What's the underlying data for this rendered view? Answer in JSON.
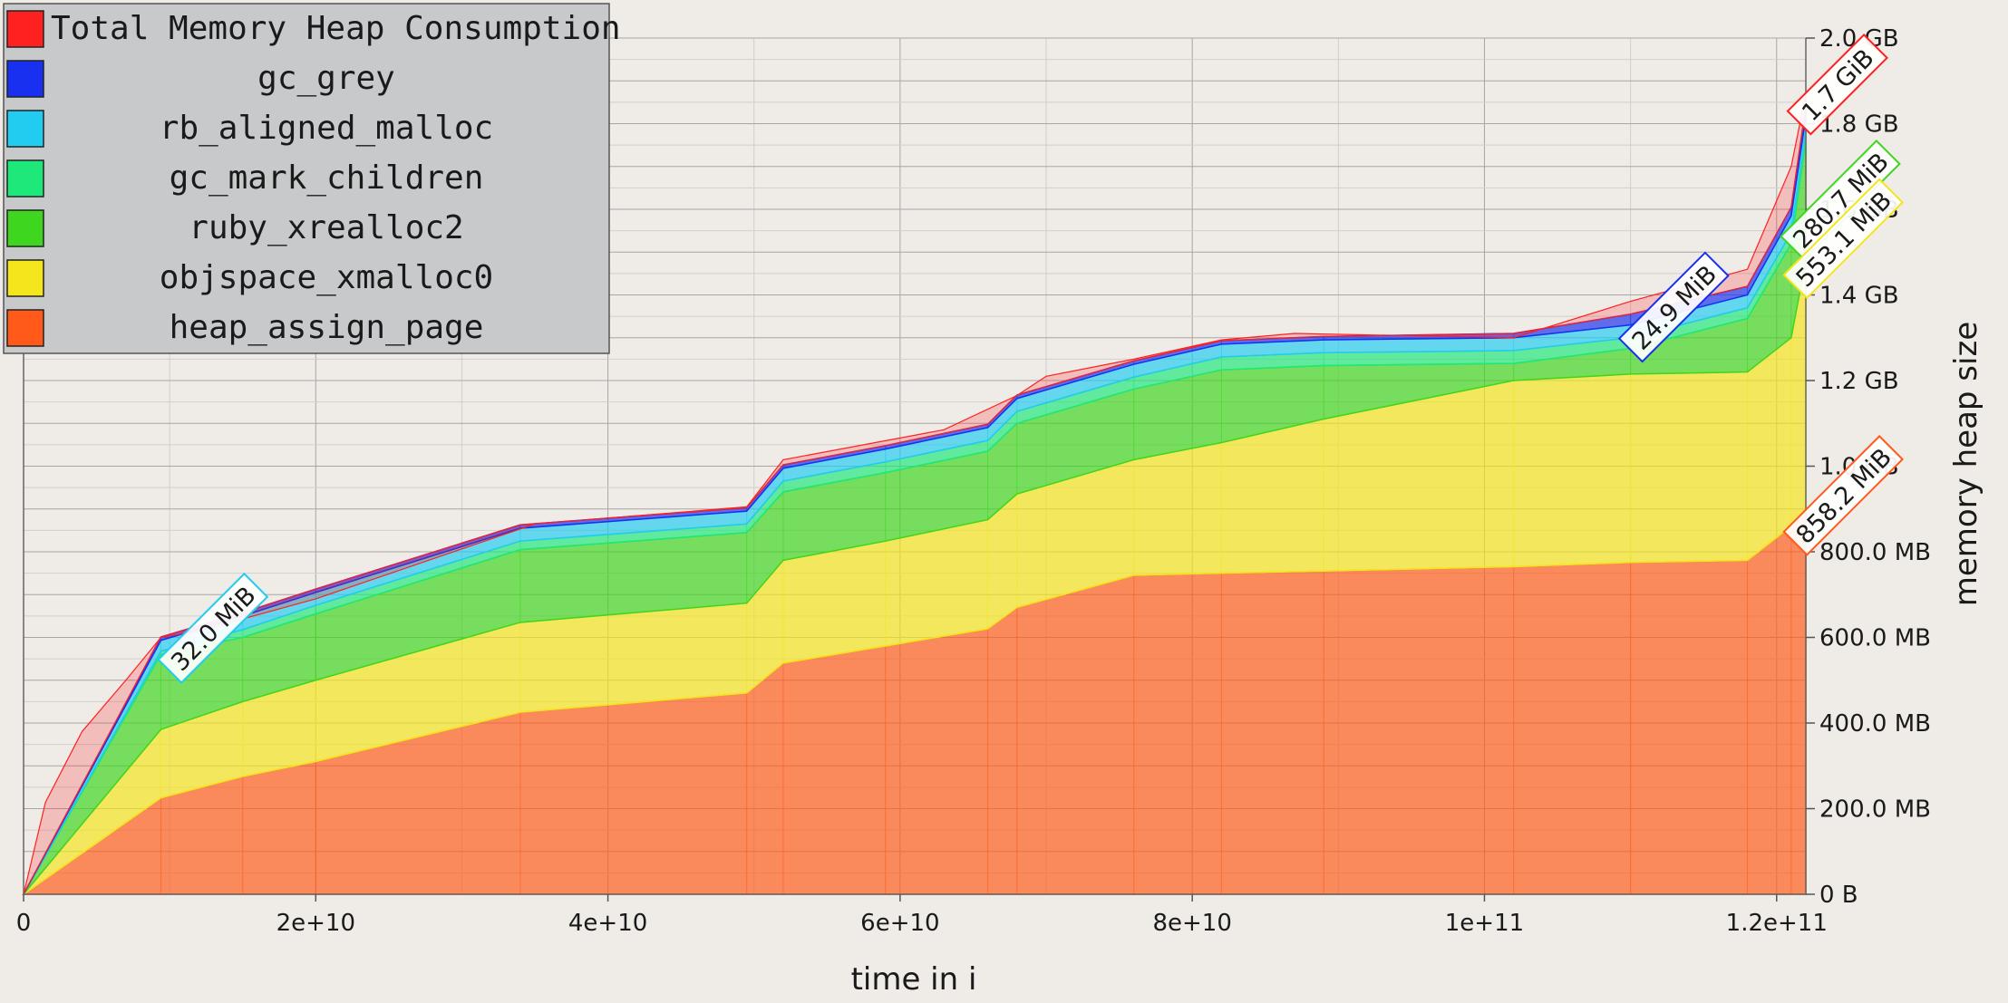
{
  "chart_data": {
    "type": "area",
    "stacked": true,
    "xlabel": "time in i",
    "ylabel": "memory heap size",
    "xlim": [
      0,
      122000000000
    ],
    "ylim_mb": [
      0,
      2000
    ],
    "x_ticks": [
      {
        "value": 0,
        "label": "0"
      },
      {
        "value": 20000000000,
        "label": "2e+10"
      },
      {
        "value": 40000000000,
        "label": "4e+10"
      },
      {
        "value": 60000000000,
        "label": "6e+10"
      },
      {
        "value": 80000000000,
        "label": "8e+10"
      },
      {
        "value": 100000000000,
        "label": "1e+11"
      },
      {
        "value": 120000000000,
        "label": "1.2e+11"
      }
    ],
    "y_ticks": [
      {
        "value": 0,
        "label": "0 B"
      },
      {
        "value": 200,
        "label": "200.0 MB"
      },
      {
        "value": 400,
        "label": "400.0 MB"
      },
      {
        "value": 600,
        "label": "600.0 MB"
      },
      {
        "value": 800,
        "label": "800.0 MB"
      },
      {
        "value": 1000,
        "label": "1.0 GB"
      },
      {
        "value": 1200,
        "label": "1.2 GB"
      },
      {
        "value": 1400,
        "label": "1.4 GB"
      },
      {
        "value": 1600,
        "label": "1.6 GB"
      },
      {
        "value": 1800,
        "label": "1.8 GB"
      },
      {
        "value": 2000,
        "label": "2.0 GB"
      }
    ],
    "grid": true,
    "legend_position": "top-left",
    "x": [
      0,
      9400000000,
      15000000000,
      20000000000,
      34000000000,
      49500000000,
      52000000000,
      59000000000,
      66000000000,
      68000000000,
      76000000000,
      82000000000,
      89000000000,
      102000000000,
      110000000000,
      118000000000,
      121000000000,
      122000000000
    ],
    "series": [
      {
        "name": "heap_assign_page",
        "color": "#ff5a1a",
        "values": [
          0,
          225,
          275,
          310,
          425,
          470,
          540,
          580,
          620,
          670,
          745,
          750,
          755,
          765,
          775,
          780,
          860,
          900
        ]
      },
      {
        "name": "objspace_xmalloc0",
        "color": "#f5e51c",
        "values": [
          0,
          160,
          175,
          190,
          210,
          210,
          240,
          245,
          255,
          265,
          270,
          305,
          355,
          435,
          440,
          440,
          440,
          580
        ]
      },
      {
        "name": "ruby_xrealloc2",
        "color": "#3ed61e",
        "values": [
          0,
          175,
          150,
          155,
          170,
          165,
          160,
          160,
          160,
          165,
          165,
          170,
          125,
          40,
          60,
          125,
          220,
          280
        ]
      },
      {
        "name": "gc_mark_children",
        "color": "#1ee87a",
        "values": [
          0,
          8,
          18,
          20,
          20,
          20,
          25,
          25,
          25,
          28,
          28,
          30,
          30,
          30,
          25,
          25,
          25,
          25
        ]
      },
      {
        "name": "rb_aligned_malloc",
        "color": "#22ccf0",
        "values": [
          0,
          25,
          32,
          30,
          30,
          30,
          30,
          30,
          30,
          30,
          30,
          30,
          30,
          30,
          30,
          30,
          40,
          30
        ]
      },
      {
        "name": "gc_grey",
        "color": "#1a30f0",
        "values": [
          0,
          8,
          8,
          8,
          8,
          8,
          8,
          8,
          8,
          8,
          8,
          8,
          8,
          10,
          25,
          20,
          20,
          25
        ]
      }
    ],
    "total": {
      "name": "Total Memory Heap Consumption",
      "color": "#ff2020",
      "x": [
        0,
        1500000000,
        4000000000,
        7000000000,
        9400000000,
        12000000000,
        20000000000,
        35000000000,
        49500000000,
        52000000000,
        63000000000,
        68000000000,
        70000000000,
        76000000000,
        82000000000,
        87000000000,
        102000000000,
        110000000000,
        118000000000,
        121000000000,
        122000000000
      ],
      "values": [
        0,
        215,
        380,
        500,
        600,
        615,
        690,
        865,
        905,
        1015,
        1085,
        1165,
        1210,
        1250,
        1295,
        1310,
        1300,
        1385,
        1460,
        1700,
        1870
      ]
    },
    "legend": [
      {
        "label": "Total Memory Heap Consumption",
        "color": "#ff2020"
      },
      {
        "label": "gc_grey",
        "color": "#1a30f0"
      },
      {
        "label": "rb_aligned_malloc",
        "color": "#22ccf0"
      },
      {
        "label": "gc_mark_children",
        "color": "#1ee87a"
      },
      {
        "label": "ruby_xrealloc2",
        "color": "#3ed61e"
      },
      {
        "label": "objspace_xmalloc0",
        "color": "#f5e51c"
      },
      {
        "label": "heap_assign_page",
        "color": "#ff5a1a"
      }
    ],
    "annotations": [
      {
        "text": "32.0 MiB",
        "color": "#22ccf0",
        "x": 13000000000,
        "y": 620
      },
      {
        "text": "24.9 MiB",
        "color": "#1a30f0",
        "x": 113000000000,
        "y": 1370
      },
      {
        "text": "1.7 GiB",
        "color": "#ff2020",
        "x": 124200000000,
        "y": 1890
      },
      {
        "text": "280.7 MiB",
        "color": "#3ed61e",
        "x": 124400000000,
        "y": 1620
      },
      {
        "text": "553.1 MiB",
        "color": "#f5e51c",
        "x": 124600000000,
        "y": 1530
      },
      {
        "text": "858.2 MiB",
        "color": "#ff5a1a",
        "x": 124600000000,
        "y": 930
      }
    ]
  }
}
